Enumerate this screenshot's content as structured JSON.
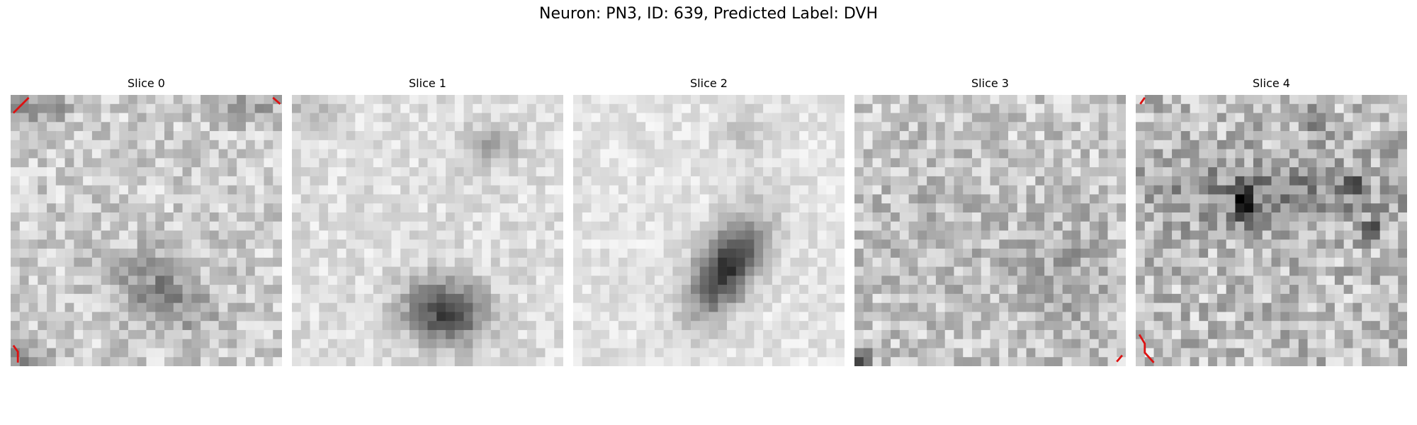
{
  "figure": {
    "title": "Neuron: PN3, ID: 639, Predicted Label: DVH"
  },
  "panels": [
    {
      "title": "Slice 0"
    },
    {
      "title": "Slice 1"
    },
    {
      "title": "Slice 2"
    },
    {
      "title": "Slice 3"
    },
    {
      "title": "Slice 4"
    }
  ],
  "colors": {
    "background": "#ffffff",
    "text": "#000000",
    "contour": "#dd1111"
  }
}
